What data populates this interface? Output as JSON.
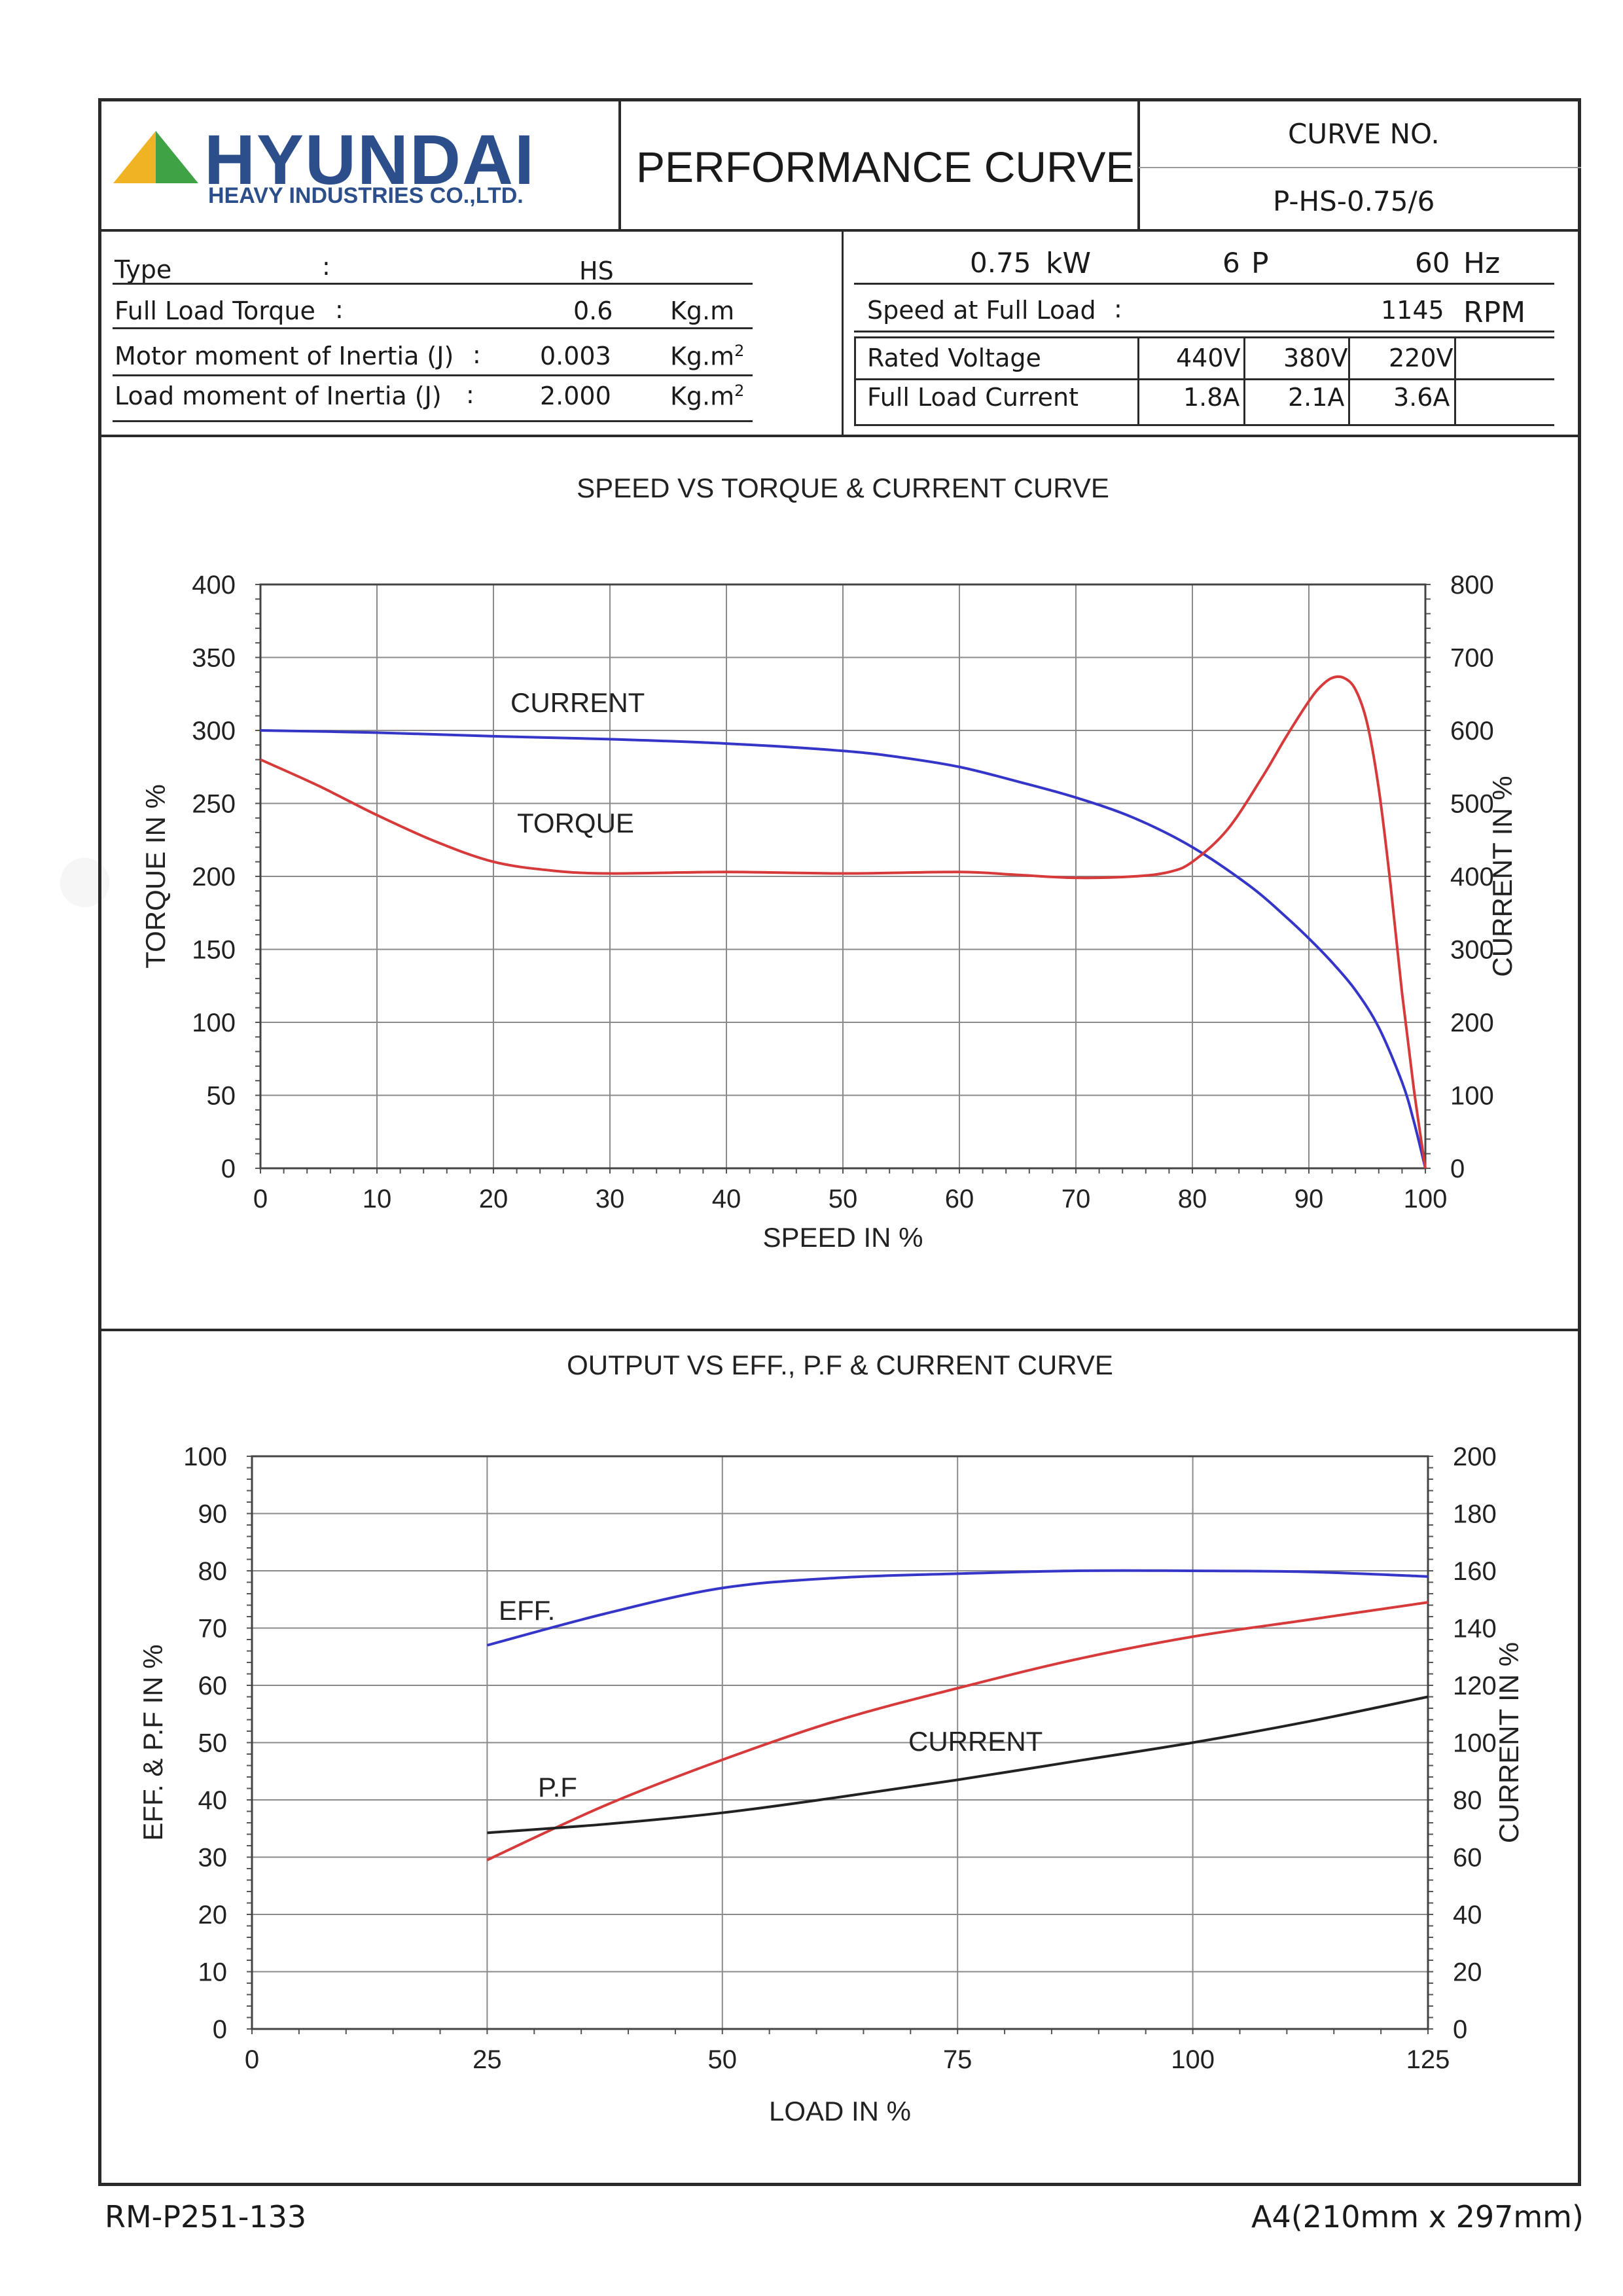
{
  "header": {
    "brand": "HYUNDAI",
    "brand_sub": "HEAVY INDUSTRIES CO.,LTD.",
    "title": "PERFORMANCE CURVE",
    "curve_no_label": "CURVE NO.",
    "curve_no_value": "P-HS-0.75/6"
  },
  "specs_left": [
    {
      "label": "Type",
      "colon": ":",
      "value": "HS",
      "unit": ""
    },
    {
      "label": "Full Load Torque",
      "colon": ":",
      "value": "0.6",
      "unit": "Kg.m"
    },
    {
      "label": "Motor moment of Inertia (J)",
      "colon": ":",
      "value": "0.003",
      "unit": "Kg.m",
      "unit_sup": "2"
    },
    {
      "label": "Load moment of Inertia (J)",
      "colon": ":",
      "value": "2.000",
      "unit": "Kg.m",
      "unit_sup": "2"
    }
  ],
  "specs_right": {
    "power_value": "0.75",
    "power_unit": "kW",
    "poles_value": "6",
    "poles_unit": "P",
    "freq_value": "60",
    "freq_unit": "Hz",
    "speed_label": "Speed at Full Load",
    "speed_colon": ":",
    "speed_value": "1145",
    "speed_unit": "RPM",
    "voltage_label": "Rated Voltage",
    "voltages": [
      "440V",
      "380V",
      "220V"
    ],
    "current_label": "Full Load Current",
    "currents": [
      "1.8A",
      "2.1A",
      "3.6A"
    ]
  },
  "footer": {
    "left": "RM-P251-133",
    "right": "A4(210mm x 297mm)"
  },
  "colors": {
    "current_top": "#3535c8",
    "torque": "#d63a3a",
    "eff": "#3535c8",
    "pf": "#d63a3a",
    "current_bottom": "#222222",
    "brand": "#2c4f8c"
  },
  "chart_data": [
    {
      "type": "line",
      "title": "SPEED VS TORQUE & CURRENT CURVE",
      "xlabel": "SPEED IN %",
      "ylabel": "TORQUE IN %",
      "y2label": "CURRENT IN %",
      "xlim": [
        0,
        100
      ],
      "ylim": [
        0,
        400
      ],
      "y2lim": [
        0,
        800
      ],
      "xticks": [
        "0",
        "10",
        "20",
        "30",
        "40",
        "50",
        "60",
        "70",
        "80",
        "90",
        "100"
      ],
      "yticks": [
        "0",
        "50",
        "100",
        "150",
        "200",
        "250",
        "300",
        "350",
        "400"
      ],
      "y2ticks": [
        "0",
        "100",
        "200",
        "300",
        "400",
        "500",
        "600",
        "700",
        "800"
      ],
      "grid": true,
      "series": [
        {
          "name": "CURRENT",
          "axis": "y2",
          "x": [
            0,
            10,
            20,
            30,
            40,
            50,
            55,
            60,
            65,
            70,
            75,
            80,
            85,
            88,
            90,
            92,
            94,
            96,
            98,
            99,
            100
          ],
          "y": [
            600,
            597,
            592,
            588,
            582,
            572,
            563,
            550,
            530,
            508,
            480,
            440,
            386,
            345,
            315,
            282,
            244,
            193,
            118,
            65,
            0
          ]
        },
        {
          "name": "TORQUE",
          "axis": "y",
          "x": [
            0,
            5,
            10,
            15,
            20,
            25,
            30,
            40,
            50,
            60,
            65,
            70,
            75,
            78,
            80,
            83,
            86,
            88,
            90,
            91,
            92,
            93,
            94,
            95,
            96,
            97,
            98,
            99,
            100
          ],
          "y": [
            280,
            262,
            242,
            224,
            210,
            204,
            202,
            203,
            202,
            203,
            201,
            199,
            200,
            203,
            210,
            232,
            268,
            295,
            320,
            330,
            336,
            336,
            328,
            305,
            260,
            195,
            120,
            55,
            0
          ]
        }
      ],
      "annotations": [
        "CURRENT",
        "TORQUE"
      ]
    },
    {
      "type": "line",
      "title": "OUTPUT VS EFF., P.F & CURRENT CURVE",
      "xlabel": "LOAD IN %",
      "ylabel": "EFF. & P.F IN %",
      "y2label": "CURRENT IN %",
      "xlim": [
        0,
        125
      ],
      "ylim": [
        0,
        100
      ],
      "y2lim": [
        0,
        200
      ],
      "xticks": [
        "0",
        "25",
        "50",
        "75",
        "100",
        "125"
      ],
      "yticks": [
        "0",
        "10",
        "20",
        "30",
        "40",
        "50",
        "60",
        "70",
        "80",
        "90",
        "100"
      ],
      "y2ticks": [
        "0",
        "20",
        "40",
        "60",
        "80",
        "100",
        "120",
        "140",
        "160",
        "180",
        "200"
      ],
      "grid": true,
      "series": [
        {
          "name": "EFF.",
          "axis": "y",
          "x": [
            25,
            37.5,
            50,
            62.5,
            75,
            87.5,
            100,
            112.5,
            125
          ],
          "y": [
            67,
            72.5,
            77,
            78.8,
            79.5,
            80,
            80,
            79.8,
            79
          ]
        },
        {
          "name": "P.F",
          "axis": "y",
          "x": [
            25,
            37.5,
            50,
            62.5,
            75,
            87.5,
            100,
            112.5,
            125
          ],
          "y": [
            29.5,
            39,
            47,
            54,
            59.5,
            64.5,
            68.5,
            71.5,
            74.5
          ]
        },
        {
          "name": "CURRENT",
          "axis": "y2",
          "x": [
            25,
            37.5,
            50,
            62.5,
            75,
            87.5,
            100,
            112.5,
            125
          ],
          "y": [
            68.5,
            71.5,
            75.5,
            81,
            87,
            93.5,
            100,
            107.5,
            116
          ]
        }
      ],
      "annotations": [
        "EFF.",
        "P.F",
        "CURRENT"
      ]
    }
  ]
}
